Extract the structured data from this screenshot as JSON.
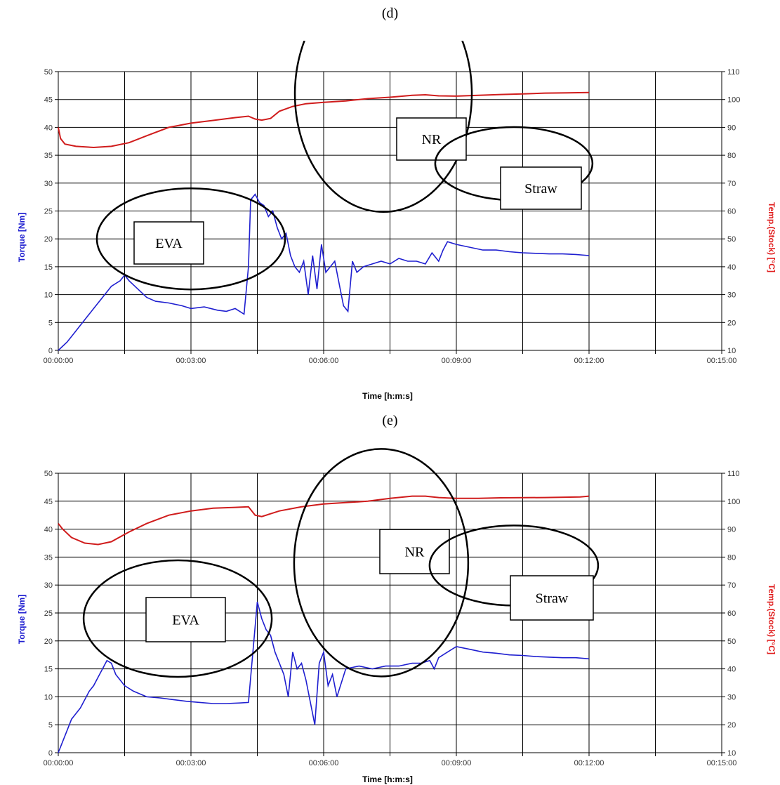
{
  "chart_data": [
    {
      "type": "line",
      "panel_label": "(d)",
      "xlabel": "Time [h:m:s]",
      "ylabel_left": "Torque [Nm]",
      "ylabel_right": "Temp.(Stock) [°C]",
      "x_ticks": [
        "00:00:00",
        "00:03:00",
        "00:06:00",
        "00:09:00",
        "00:12:00",
        "00:15:00"
      ],
      "xlim_minutes": [
        0,
        15
      ],
      "ylim_left": [
        0,
        50
      ],
      "ylim_right": [
        10,
        110
      ],
      "grid": true,
      "colors": {
        "torque": "#1f1fd0",
        "temperature": "#d01c1c"
      },
      "torque_minutes": [
        0,
        0.2,
        0.4,
        0.6,
        0.8,
        1.0,
        1.2,
        1.4,
        1.5,
        1.6,
        1.8,
        2.0,
        2.2,
        2.5,
        2.8,
        3.0,
        3.3,
        3.6,
        3.8,
        4.0,
        4.2,
        4.3,
        4.35,
        4.45,
        4.55,
        4.65,
        4.75,
        4.85,
        4.95,
        5.05,
        5.15,
        5.25,
        5.35,
        5.45,
        5.55,
        5.65,
        5.75,
        5.85,
        5.95,
        6.05,
        6.15,
        6.25,
        6.35,
        6.45,
        6.55,
        6.65,
        6.75,
        6.9,
        7.1,
        7.3,
        7.5,
        7.7,
        7.9,
        8.1,
        8.3,
        8.45,
        8.6,
        8.7,
        8.8,
        9.0,
        9.3,
        9.6,
        9.9,
        10.2,
        10.5,
        10.8,
        11.1,
        11.4,
        11.7,
        12.0
      ],
      "torque_values": [
        0,
        1.5,
        3.5,
        5.5,
        7.5,
        9.5,
        11.5,
        12.5,
        13.5,
        12.5,
        11,
        9.5,
        8.8,
        8.5,
        8,
        7.5,
        7.8,
        7.2,
        7,
        7.5,
        6.5,
        15,
        27,
        28,
        26.5,
        26,
        24,
        25,
        22,
        20,
        21,
        17,
        15,
        14,
        16,
        10,
        17,
        11,
        19,
        14,
        15,
        16,
        12,
        8,
        7,
        16,
        14,
        15,
        15.5,
        16,
        15.5,
        16.5,
        16,
        16,
        15.5,
        17.5,
        16,
        18,
        19.5,
        19,
        18.5,
        18,
        18,
        17.7,
        17.5,
        17.4,
        17.3,
        17.3,
        17.2,
        17
      ],
      "temp_minutes": [
        0,
        0.05,
        0.15,
        0.4,
        0.8,
        1.2,
        1.6,
        2.0,
        2.5,
        3.0,
        3.5,
        4.0,
        4.3,
        4.45,
        4.6,
        4.8,
        5.0,
        5.3,
        5.6,
        6.0,
        6.5,
        7.0,
        7.5,
        8.0,
        8.3,
        8.6,
        9.0,
        9.5,
        10.0,
        10.5,
        11.0,
        11.5,
        12.0
      ],
      "temp_values": [
        90,
        86,
        84,
        83.2,
        82.8,
        83.2,
        84.5,
        87,
        90,
        91.5,
        92.5,
        93.5,
        94,
        93,
        92.6,
        93.2,
        95.8,
        97.5,
        98.5,
        99,
        99.5,
        100.3,
        100.8,
        101.5,
        101.7,
        101.3,
        101.2,
        101.5,
        101.8,
        102,
        102.3,
        102.4,
        102.5
      ],
      "annotations": [
        {
          "label": "EVA",
          "data_x": 3,
          "data_y": 20
        },
        {
          "label": "NR",
          "data_x": 7.35,
          "data_y": 46
        },
        {
          "label": "Straw",
          "data_x": 10.3,
          "data_y": 33.5
        }
      ]
    },
    {
      "type": "line",
      "panel_label": "(e)",
      "xlabel": "Time [h:m:s]",
      "ylabel_left": "Torque [Nm]",
      "ylabel_right": "Temp.(Stock) [°C]",
      "x_ticks": [
        "00:00:00",
        "00:03:00",
        "00:06:00",
        "00:09:00",
        "00:12:00",
        "00:15:00"
      ],
      "xlim_minutes": [
        0,
        15
      ],
      "ylim_left": [
        0,
        50
      ],
      "ylim_right": [
        10,
        110
      ],
      "grid": true,
      "colors": {
        "torque": "#1f1fd0",
        "temperature": "#d01c1c"
      },
      "torque_minutes": [
        0,
        0.1,
        0.2,
        0.3,
        0.4,
        0.5,
        0.6,
        0.7,
        0.8,
        0.9,
        1.0,
        1.1,
        1.2,
        1.3,
        1.5,
        1.7,
        2.0,
        2.3,
        2.6,
        2.9,
        3.2,
        3.5,
        3.8,
        4.1,
        4.3,
        4.4,
        4.5,
        4.6,
        4.7,
        4.8,
        4.9,
        5.0,
        5.1,
        5.2,
        5.3,
        5.4,
        5.5,
        5.6,
        5.7,
        5.8,
        5.9,
        6.0,
        6.1,
        6.2,
        6.3,
        6.5,
        6.8,
        7.1,
        7.4,
        7.7,
        8.0,
        8.2,
        8.4,
        8.5,
        8.6,
        8.8,
        9.0,
        9.3,
        9.6,
        9.9,
        10.2,
        10.5,
        10.8,
        11.1,
        11.4,
        11.7,
        12.0
      ],
      "torque_values": [
        0,
        2,
        4,
        6,
        7,
        8,
        9.5,
        11,
        12,
        13.5,
        15,
        16.5,
        16,
        14,
        12,
        11,
        10,
        9.8,
        9.5,
        9.2,
        9,
        8.8,
        8.8,
        8.9,
        9,
        18,
        27,
        24,
        22,
        21,
        18,
        16,
        14,
        10,
        18,
        15,
        16,
        13,
        9,
        5,
        16,
        18,
        12,
        14,
        10,
        15,
        15.5,
        15,
        15.5,
        15.5,
        16,
        16,
        16.5,
        15,
        17,
        18,
        19,
        18.5,
        18,
        17.8,
        17.5,
        17.4,
        17.2,
        17.1,
        17,
        17,
        16.8
      ],
      "temp_minutes": [
        0,
        0.1,
        0.3,
        0.6,
        0.9,
        1.2,
        1.6,
        2.0,
        2.5,
        3.0,
        3.5,
        4.0,
        4.3,
        4.45,
        4.6,
        4.8,
        5.0,
        5.5,
        6.0,
        6.5,
        7.0,
        7.5,
        8.0,
        8.3,
        8.6,
        9.0,
        9.5,
        10.0,
        11.0,
        11.8,
        12.0
      ],
      "temp_values": [
        92,
        90,
        87,
        85,
        84.5,
        85.5,
        89,
        92,
        95,
        96.5,
        97.5,
        97.8,
        98,
        95,
        94.5,
        95.5,
        96.5,
        98,
        99,
        99.5,
        100,
        101,
        101.8,
        101.8,
        101.3,
        101,
        101,
        101.2,
        101.3,
        101.5,
        101.8
      ],
      "annotations": [
        {
          "label": "EVA",
          "data_x": 2.7,
          "data_y": 24
        },
        {
          "label": "NR",
          "data_x": 7.3,
          "data_y": 34
        },
        {
          "label": "Straw",
          "data_x": 10.3,
          "data_y": 33.5
        }
      ]
    }
  ]
}
